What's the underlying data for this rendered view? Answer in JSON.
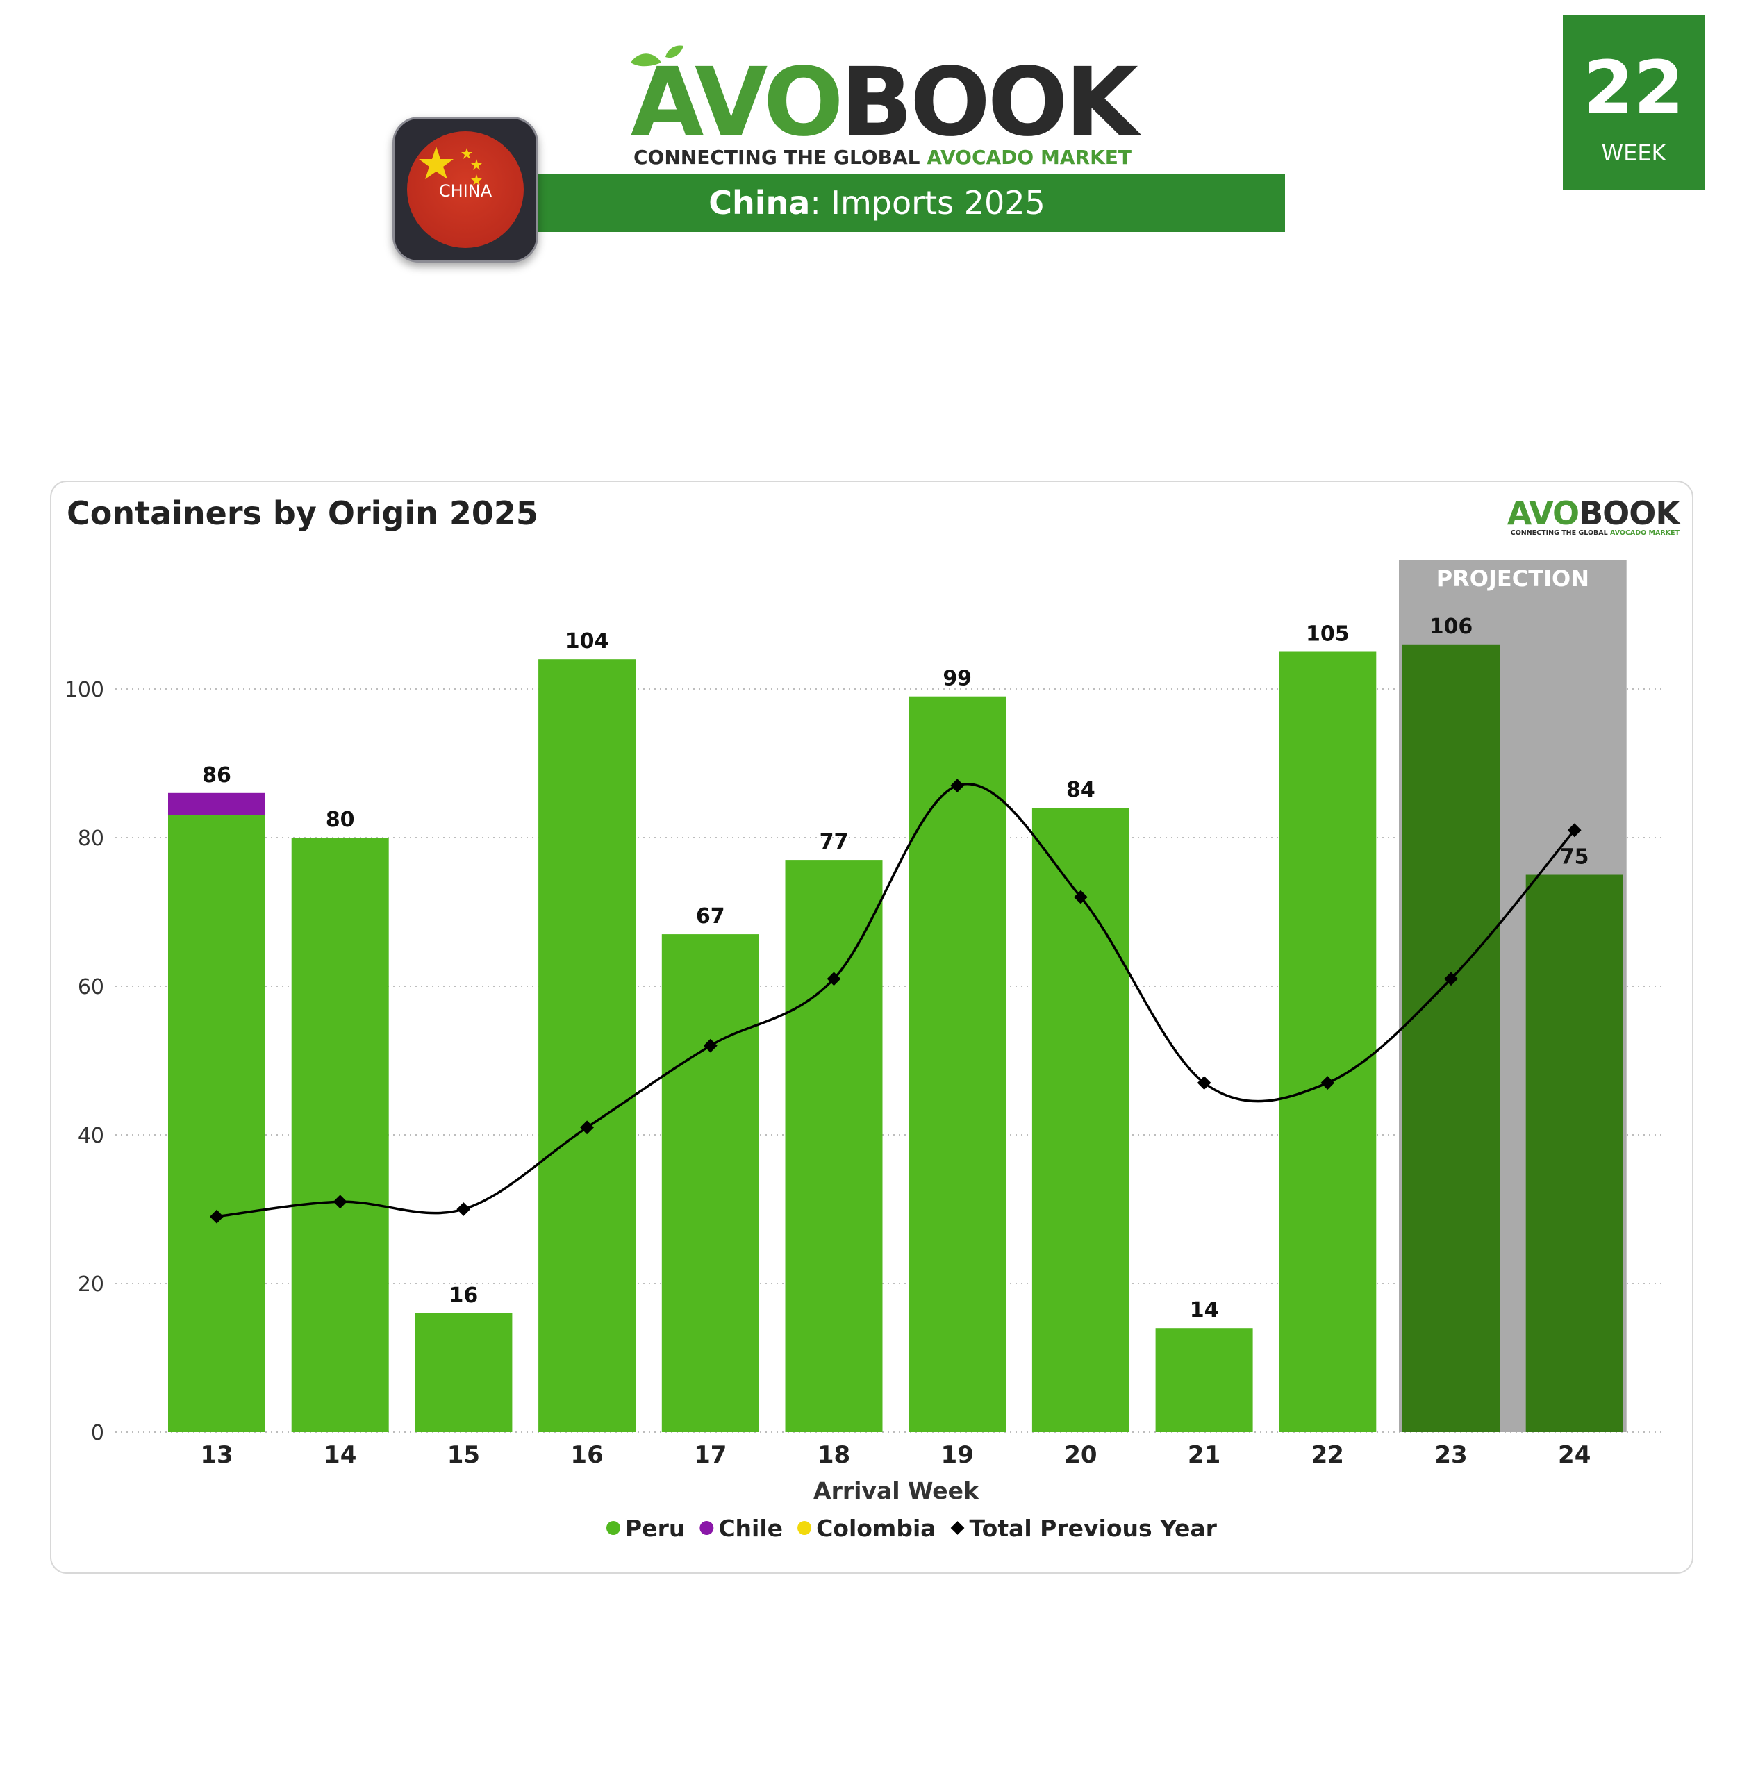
{
  "header": {
    "logo_text_green": "AVO",
    "logo_text_dark": "BOOK",
    "tagline_dark": "CONNECTING THE GLOBAL ",
    "tagline_green": "AVOCADO MARKET",
    "country": "China",
    "title_rest": ": Imports 2025",
    "flag_label": "CHINA",
    "week_number": "22",
    "week_label": "WEEK"
  },
  "colors": {
    "brand_green": "#2f8a2f",
    "peru": "#52b81f",
    "chile": "#8a17a8",
    "colombia": "#f2d90c",
    "projection_bar": "#367a14",
    "projection_bg": "#aaaaaa",
    "line": "#000000"
  },
  "chart_data": {
    "type": "bar",
    "title": "Containers by Origin 2025",
    "xlabel": "Arrival Week",
    "ylabel": "",
    "ylim": [
      0,
      115
    ],
    "yticks": [
      0,
      20,
      40,
      60,
      80,
      100
    ],
    "categories": [
      "13",
      "14",
      "15",
      "16",
      "17",
      "18",
      "19",
      "20",
      "21",
      "22",
      "23",
      "24"
    ],
    "totals": [
      86,
      80,
      16,
      104,
      67,
      77,
      99,
      84,
      14,
      105,
      106,
      75
    ],
    "series": [
      {
        "name": "Peru",
        "kind": "bar",
        "values": [
          83,
          80,
          16,
          104,
          67,
          77,
          99,
          84,
          14,
          105,
          106,
          75
        ]
      },
      {
        "name": "Chile",
        "kind": "bar",
        "values": [
          3,
          0,
          0,
          0,
          0,
          0,
          0,
          0,
          0,
          0,
          0,
          0
        ]
      },
      {
        "name": "Colombia",
        "kind": "bar",
        "values": [
          0,
          0,
          0,
          0,
          0,
          0,
          0,
          0,
          0,
          0,
          0,
          0
        ]
      },
      {
        "name": "Total Previous Year",
        "kind": "line",
        "values": [
          29,
          31,
          30,
          41,
          52,
          61,
          87,
          72,
          47,
          47,
          61,
          81
        ]
      }
    ],
    "projection": {
      "label": "PROJECTION",
      "categories": [
        "23",
        "24"
      ]
    },
    "grid": "horizontal dotted",
    "legend_position": "bottom-center"
  }
}
